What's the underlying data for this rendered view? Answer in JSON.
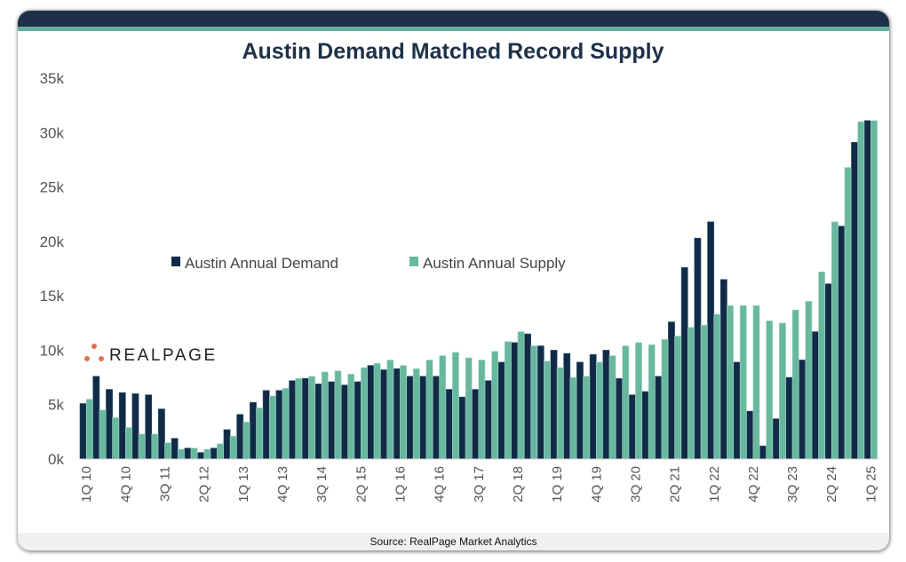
{
  "footer": {
    "source": "Source: RealPage Market Analytics"
  },
  "logo": {
    "text": "REALPAGE",
    "color": "#e8704f"
  },
  "colors": {
    "demand": "#112a45",
    "supply": "#68b79f",
    "header": "#1e3148",
    "stripe": "#62b09d"
  },
  "chart_data": {
    "type": "bar",
    "title": "Austin Demand Matched Record Supply",
    "xlabel": "",
    "ylabel": "",
    "ylim": [
      0,
      35000
    ],
    "yticks": [
      0,
      5000,
      10000,
      15000,
      20000,
      25000,
      30000,
      35000
    ],
    "ytick_labels": [
      "0k",
      "5k",
      "10k",
      "15k",
      "20k",
      "25k",
      "30k",
      "35k"
    ],
    "legend": {
      "placement": "center-left",
      "entries": [
        "Austin Annual Demand",
        "Austin Annual Supply"
      ]
    },
    "categories": [
      "1Q 10",
      "2Q 10",
      "3Q 10",
      "4Q 10",
      "1Q 11",
      "2Q 11",
      "3Q 11",
      "4Q 11",
      "1Q 12",
      "2Q 12",
      "3Q 12",
      "4Q 12",
      "1Q 13",
      "2Q 13",
      "3Q 13",
      "4Q 13",
      "1Q 14",
      "2Q 14",
      "3Q 14",
      "4Q 14",
      "1Q 15",
      "2Q 15",
      "3Q 15",
      "4Q 15",
      "1Q 16",
      "2Q 16",
      "3Q 16",
      "4Q 16",
      "1Q 17",
      "2Q 17",
      "3Q 17",
      "4Q 17",
      "1Q 18",
      "2Q 18",
      "3Q 18",
      "4Q 18",
      "1Q 19",
      "2Q 19",
      "3Q 19",
      "4Q 19",
      "1Q 20",
      "2Q 20",
      "3Q 20",
      "4Q 20",
      "1Q 21",
      "2Q 21",
      "3Q 21",
      "4Q 21",
      "1Q 22",
      "2Q 22",
      "3Q 22",
      "4Q 22",
      "1Q 23",
      "2Q 23",
      "3Q 23",
      "4Q 23",
      "1Q 24",
      "2Q 24",
      "3Q 24",
      "4Q 24",
      "1Q 25"
    ],
    "series": [
      {
        "name": "Austin Annual Demand",
        "values": [
          5100,
          7600,
          6400,
          6100,
          6000,
          5900,
          4600,
          1900,
          1000,
          600,
          1000,
          2700,
          4100,
          5200,
          6300,
          6300,
          7200,
          7400,
          6900,
          7100,
          6800,
          7100,
          8600,
          8200,
          8300,
          7600,
          7600,
          7600,
          6400,
          5700,
          6400,
          7200,
          8900,
          10700,
          11500,
          10400,
          10000,
          9700,
          8900,
          9600,
          10000,
          7400,
          5900,
          6200,
          7600,
          12600,
          17600,
          20300,
          21800,
          16500,
          8900,
          4400,
          1200,
          3700,
          7500,
          9100,
          11700,
          16100,
          21400,
          29100,
          31100
        ]
      },
      {
        "name": "Austin Annual Supply",
        "values": [
          5500,
          4500,
          3800,
          2900,
          2300,
          2300,
          1500,
          900,
          1000,
          900,
          1400,
          2100,
          3400,
          4700,
          5800,
          6500,
          7400,
          7600,
          8000,
          8100,
          7800,
          8400,
          8800,
          9100,
          8600,
          8300,
          9100,
          9500,
          9800,
          9300,
          9100,
          9900,
          10800,
          11700,
          10400,
          9000,
          8400,
          7500,
          7600,
          8900,
          9500,
          10400,
          10700,
          10500,
          11000,
          11300,
          12100,
          12300,
          13300,
          14100,
          14100,
          14100,
          12700,
          12500,
          13700,
          14500,
          17200,
          21800,
          26800,
          31000,
          31100
        ]
      }
    ]
  }
}
